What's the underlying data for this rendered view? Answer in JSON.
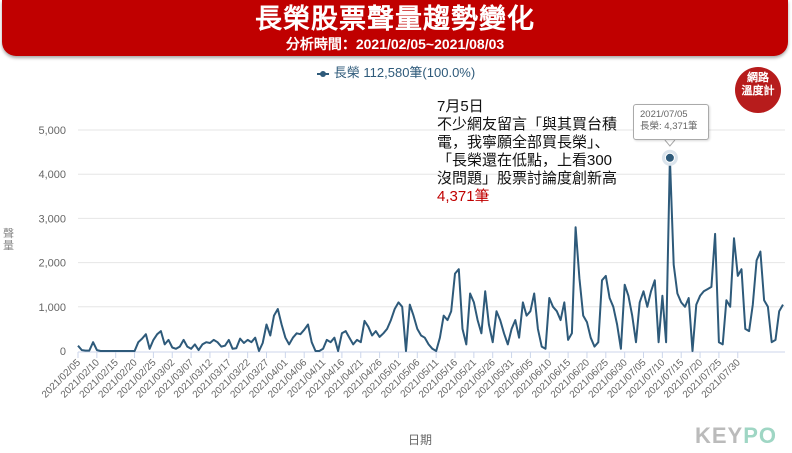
{
  "header": {
    "title": "長榮股票聲量趨勢變化",
    "subtitle": "分析時間：2021/02/05~2021/08/03"
  },
  "legend": {
    "label": "長榮 112,580筆(100.0%)",
    "color": "#2e5a7a"
  },
  "badge": {
    "line1": "網路",
    "line2": "溫度計"
  },
  "annotation": {
    "date": "7月5日",
    "text1": "不少網友留言「與其買台積",
    "text2": "電，我寧願全部買長榮」、",
    "text3": "「長榮還在低點，上看300",
    "text4": "沒問題」股票討論度創新高",
    "value": "4,371筆"
  },
  "tooltip": {
    "date": "2021/07/05",
    "value": "長榮: 4,371筆"
  },
  "axes": {
    "ylabel": "聲量",
    "xlabel": "日期"
  },
  "brand": {
    "left": "KEY",
    "right": "PO"
  },
  "chart_data": {
    "type": "line",
    "title": "長榮股票聲量趨勢變化",
    "subtitle": "分析時間：2021/02/05~2021/08/03",
    "xlabel": "日期",
    "ylabel": "聲量",
    "ylim": [
      0,
      5000
    ],
    "yticks": [
      0,
      1000,
      2000,
      3000,
      4000,
      5000
    ],
    "grid": true,
    "legend_position": "top",
    "xtick_labels": [
      "2021/02/05",
      "2021/02/10",
      "2021/02/15",
      "2021/02/20",
      "2021/02/25",
      "2021/03/02",
      "2021/03/07",
      "2021/03/12",
      "2021/03/17",
      "2021/03/22",
      "2021/03/27",
      "2021/04/01",
      "2021/04/06",
      "2021/04/11",
      "2021/04/16",
      "2021/04/21",
      "2021/04/26",
      "2021/05/01",
      "2021/05/06",
      "2021/05/11",
      "2021/05/16",
      "2021/05/21",
      "2021/05/26",
      "2021/05/31",
      "2021/06/05",
      "2021/06/10",
      "2021/06/15",
      "2021/06/20",
      "2021/06/25",
      "2021/06/30",
      "2021/07/05",
      "2021/07/10",
      "2021/07/15",
      "2021/07/20",
      "2021/07/25",
      "2021/07/30"
    ],
    "x_start": "2021/02/05",
    "x_end": "2021/08/03",
    "series": [
      {
        "name": "長榮",
        "total": 112580,
        "values": [
          120,
          20,
          10,
          10,
          200,
          20,
          0,
          0,
          0,
          0,
          0,
          0,
          0,
          0,
          0,
          0,
          200,
          280,
          380,
          50,
          250,
          380,
          450,
          150,
          250,
          80,
          50,
          100,
          250,
          100,
          50,
          150,
          20,
          150,
          200,
          180,
          250,
          200,
          100,
          120,
          250,
          50,
          60,
          280,
          180,
          250,
          200,
          300,
          0,
          180,
          600,
          350,
          800,
          950,
          600,
          300,
          150,
          300,
          400,
          380,
          480,
          600,
          200,
          0,
          0,
          50,
          250,
          200,
          300,
          0,
          400,
          450,
          300,
          150,
          250,
          200,
          680,
          550,
          350,
          450,
          320,
          400,
          500,
          700,
          950,
          1100,
          1000,
          0,
          1050,
          800,
          500,
          350,
          300,
          150,
          50,
          0,
          300,
          800,
          700,
          900,
          1750,
          1850,
          500,
          150,
          1300,
          1100,
          700,
          400,
          1350,
          600,
          200,
          900,
          700,
          400,
          150,
          500,
          700,
          300,
          1100,
          800,
          900,
          1300,
          500,
          100,
          50,
          1200,
          1000,
          900,
          700,
          1100,
          250,
          400,
          2800,
          1650,
          800,
          650,
          300,
          100,
          200,
          1600,
          1700,
          1200,
          1000,
          600,
          50,
          1500,
          1250,
          800,
          200,
          1100,
          1350,
          1000,
          1350,
          1600,
          200,
          1250,
          200,
          4371,
          1950,
          1300,
          1100,
          1000,
          1200,
          0,
          1050,
          1250,
          1350,
          1400,
          1450,
          2650,
          200,
          150,
          1150,
          1000,
          2550,
          1700,
          1850,
          500,
          450,
          1050,
          2050,
          2250,
          1150,
          1000,
          200,
          250,
          900,
          1050
        ]
      }
    ]
  }
}
